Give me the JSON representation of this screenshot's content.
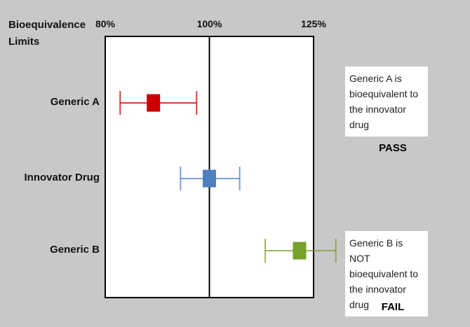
{
  "chart_data": {
    "type": "errorbar",
    "axis_label": "Bioequivalence Limits",
    "categories": [
      "Generic A",
      "Innovator Drug",
      "Generic B"
    ],
    "values": [
      88.7,
      100,
      121.3
    ],
    "lower": [
      82.6,
      94.0,
      112.7
    ],
    "upper": [
      97.3,
      106.7,
      131.1
    ],
    "colors": [
      "#cc0000",
      "#4f7fbf",
      "#77a22a"
    ],
    "xlim": [
      80,
      125
    ],
    "xscale": "log",
    "xticks": [
      {
        "value": 80,
        "label": "80%"
      },
      {
        "value": 100,
        "label": "100%"
      },
      {
        "value": 125,
        "label": "125%"
      }
    ],
    "annotations": [
      {
        "text": "Generic A is bioequivalent to the innovator drug",
        "verdict": "PASS"
      },
      {
        "text": "Generic B is NOT bioequivalent to the innovator drug",
        "verdict": "FAIL"
      }
    ]
  }
}
